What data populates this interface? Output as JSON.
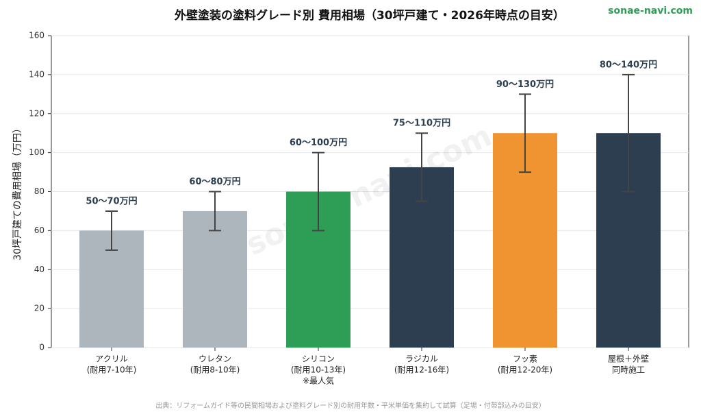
{
  "chart_data": {
    "type": "bar",
    "title": "外壁塗装の塗料グレード別 費用相場（30坪戸建て・2026年時点の目安）",
    "brand": "sonae-navi.com",
    "watermark": "sonae-navi.com",
    "ylabel": "30坪戸建ての費用相場（万円）",
    "source": "出典：リフォームガイド等の民間相場および塗料グレード別の耐用年数・平米単価を集約して試算（足場・付帯部込みの目安）",
    "categories": [
      [
        "アクリル",
        "(耐用7-10年)"
      ],
      [
        "ウレタン",
        "(耐用8-10年)"
      ],
      [
        "シリコン",
        "(耐用10-13年)",
        "※最人気"
      ],
      [
        "ラジカル",
        "(耐用12-16年)"
      ],
      [
        "フッ素",
        "(耐用12-20年)"
      ],
      [
        "屋根＋外壁",
        "同時施工"
      ]
    ],
    "values": [
      60,
      70,
      80,
      92.5,
      110,
      110
    ],
    "errors": [
      10,
      10,
      20,
      17.5,
      20,
      30
    ],
    "value_labels": [
      "50〜70万円",
      "60〜80万円",
      "60〜100万円",
      "75〜110万円",
      "90〜130万円",
      "80〜140万円"
    ],
    "colors": [
      "#adb5bd",
      "#adb5bd",
      "#2e9e57",
      "#2c3e50",
      "#ef9430",
      "#2c3e50"
    ],
    "error_color": "#444444",
    "ylim": [
      0,
      160
    ],
    "yticks": [
      0,
      20,
      40,
      60,
      80,
      100,
      120,
      140,
      160
    ],
    "grid": true
  }
}
